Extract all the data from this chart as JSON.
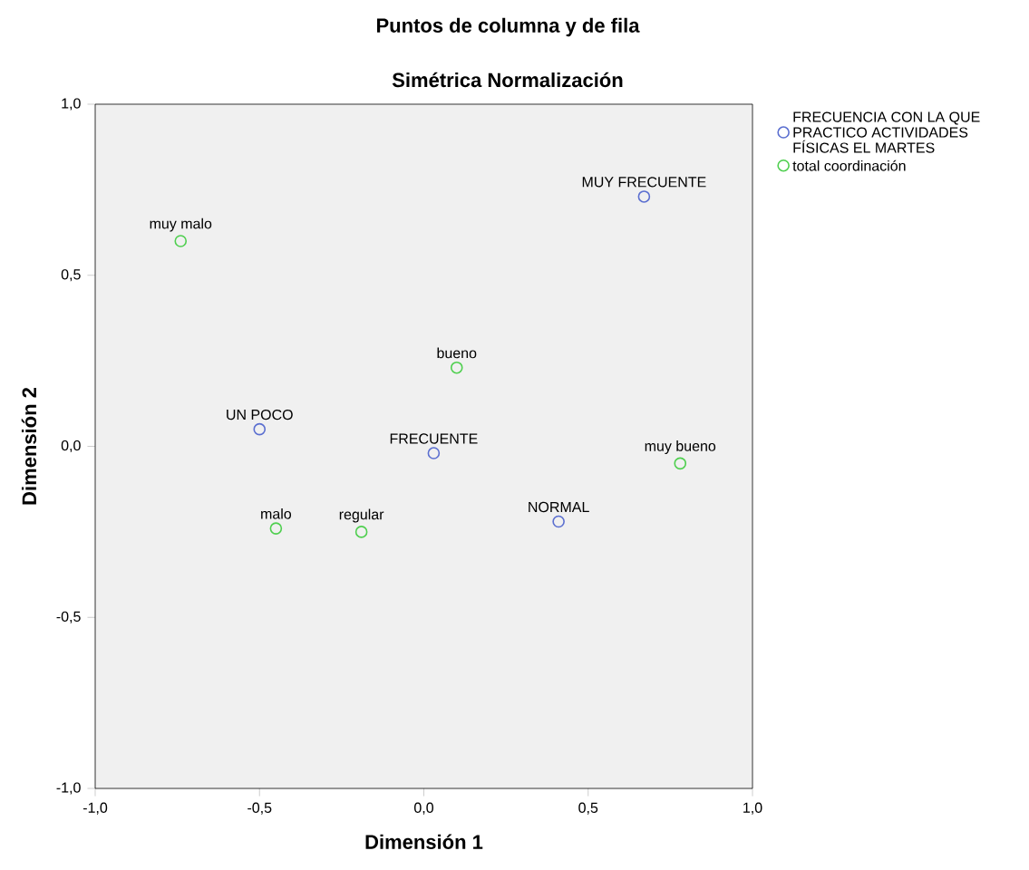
{
  "chart_data": {
    "type": "scatter",
    "title": "Puntos de columna y de fila",
    "subtitle": "Simétrica Normalización",
    "xlabel": "Dimensión 1",
    "ylabel": "Dimensión 2",
    "xlim": [
      -1,
      1
    ],
    "ylim": [
      -1,
      1
    ],
    "xticks": [
      {
        "value": -1,
        "label": "-1,0"
      },
      {
        "value": -0.5,
        "label": "-0,5"
      },
      {
        "value": 0,
        "label": "0,0"
      },
      {
        "value": 0.5,
        "label": "0,5"
      },
      {
        "value": 1,
        "label": "1,0"
      }
    ],
    "yticks": [
      {
        "value": -1,
        "label": "-1,0"
      },
      {
        "value": -0.5,
        "label": "-0,5"
      },
      {
        "value": 0,
        "label": "0,0"
      },
      {
        "value": 0.5,
        "label": "0,5"
      },
      {
        "value": 1,
        "label": "1,0"
      }
    ],
    "marker": "circle",
    "legend": "top right",
    "series": [
      {
        "name": "FRECUENCIA CON LA QUE PRACTICO ACTIVIDADES FÍSICAS  EL MARTES",
        "color": "#5b6fd0",
        "x": [
          0.67,
          -0.5,
          0.03,
          0.41
        ],
        "values": [
          0.73,
          0.05,
          -0.02,
          -0.22
        ]
      },
      {
        "name": "total coordinación",
        "color": "#4fcf4f",
        "x": [
          -0.74,
          0.1,
          0.78,
          -0.45,
          -0.19
        ],
        "values": [
          0.6,
          0.23,
          -0.05,
          -0.24,
          -0.25
        ]
      }
    ],
    "annotations": [
      {
        "text": "MUY FRECUENTE",
        "x": 0.67,
        "y": 0.73
      },
      {
        "text": "UN POCO",
        "x": -0.5,
        "y": 0.05
      },
      {
        "text": "FRECUENTE",
        "x": 0.03,
        "y": -0.02
      },
      {
        "text": "NORMAL",
        "x": 0.41,
        "y": -0.22
      },
      {
        "text": "muy malo",
        "x": -0.74,
        "y": 0.6
      },
      {
        "text": "bueno",
        "x": 0.1,
        "y": 0.23
      },
      {
        "text": "muy bueno",
        "x": 0.78,
        "y": -0.05
      },
      {
        "text": "malo",
        "x": -0.45,
        "y": -0.24
      },
      {
        "text": "regular",
        "x": -0.19,
        "y": -0.25
      }
    ]
  }
}
